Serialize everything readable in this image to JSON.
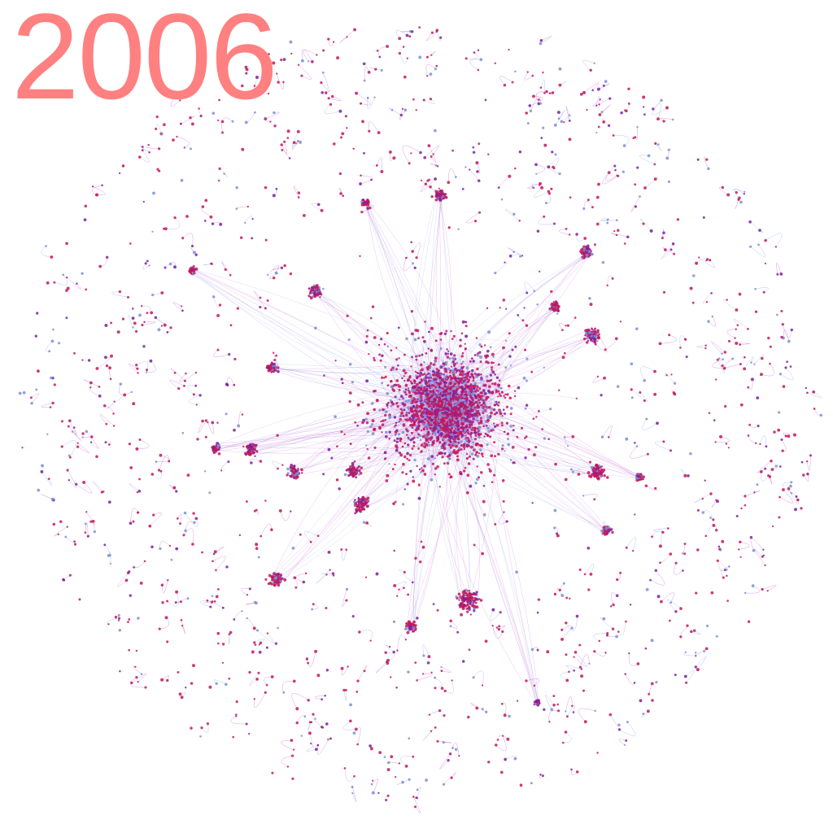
{
  "year": "2006",
  "colors": {
    "year_label": "#ff8080",
    "node_primary": "#c2185b",
    "node_secondary": "#7b1fa2",
    "node_tertiary": "#7e8fd6",
    "edge_magenta": "#c05ad0",
    "edge_blue": "#8aa0e8",
    "background": "#ffffff"
  }
}
